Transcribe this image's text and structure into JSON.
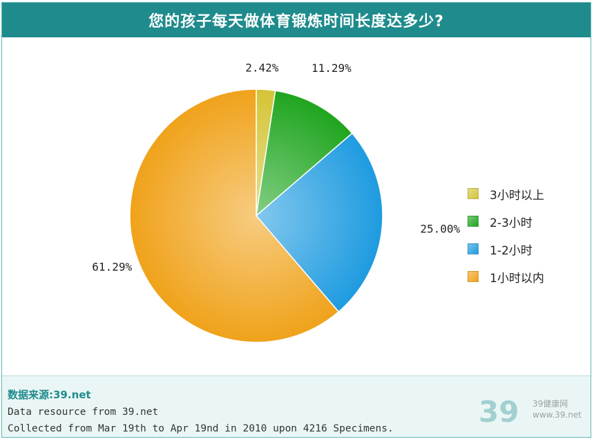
{
  "title": "您的孩子每天做体育锻炼时间长度达多少?",
  "chart_data": {
    "type": "pie",
    "title": "您的孩子每天做体育锻炼时间长度达多少?",
    "slices": [
      {
        "label": "3小时以上",
        "value": 2.42,
        "value_label": "2.42%",
        "color": "#d4c437"
      },
      {
        "label": "2-3小时",
        "value": 11.29,
        "value_label": "11.29%",
        "color": "#1fa51f"
      },
      {
        "label": "1-2小时",
        "value": 25.0,
        "value_label": "25.00%",
        "color": "#1e9be0"
      },
      {
        "label": "1小时以内",
        "value": 61.29,
        "value_label": "61.29%",
        "color": "#f0a21a"
      }
    ],
    "start_angle": "12 o'clock, clockwise",
    "legend_placement": "right"
  },
  "footer": {
    "source_heading": "数据来源:39.net",
    "line1": "Data resource from 39.net",
    "line2": "Collected from Mar 19th to Apr 19nd in 2010 upon 4216 Specimens.",
    "watermark_cn": "39健康网",
    "watermark_url": "www.39.net"
  }
}
